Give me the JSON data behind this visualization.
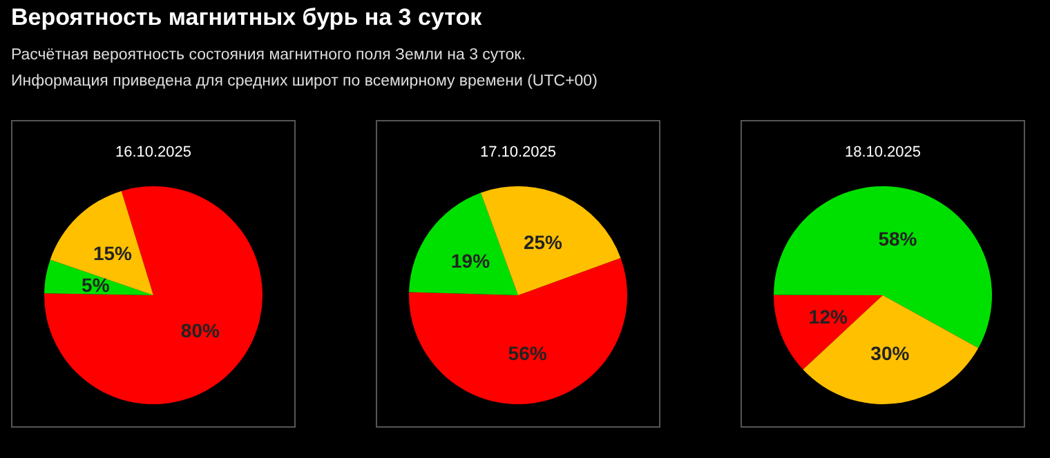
{
  "chart_data": [
    {
      "type": "other",
      "title": "Вероятность магнитных бурь на 3 суток",
      "annotations": [
        "Расчётная вероятность состояния магнитного поля Земли на 3 суток.",
        "Информация приведена для средних широт по всемирному времени (UTC+00)"
      ]
    },
    {
      "type": "pie",
      "title": "16.10.2025",
      "categories": [
        null,
        null,
        null
      ],
      "values": [
        80,
        5,
        15
      ],
      "colors": [
        "#ff0000",
        "#00e000",
        "#ffc000"
      ],
      "value_labels": [
        "80%",
        "5%",
        "15%"
      ]
    },
    {
      "type": "pie",
      "title": "17.10.2025",
      "categories": [
        null,
        null,
        null
      ],
      "values": [
        56,
        19,
        25
      ],
      "colors": [
        "#ff0000",
        "#00e000",
        "#ffc000"
      ],
      "value_labels": [
        "56%",
        "19%",
        "25%"
      ]
    },
    {
      "type": "pie",
      "title": "18.10.2025",
      "categories": [
        null,
        null,
        null
      ],
      "values": [
        12,
        58,
        30
      ],
      "colors": [
        "#ff0000",
        "#00e000",
        "#ffc000"
      ],
      "value_labels": [
        "12%",
        "58%",
        "30%"
      ]
    }
  ]
}
